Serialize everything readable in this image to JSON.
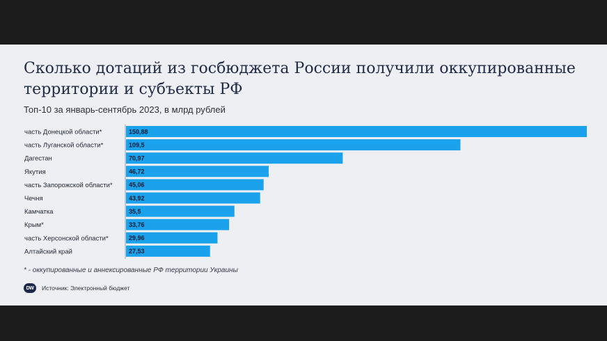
{
  "title": "Сколько дотаций из госбюджета России получили оккупированные территории и субъекты РФ",
  "subtitle": "Топ-10 за январь-сентябрь 2023, в млрд рублей",
  "footnote": "* - оккупированные и аннексированные РФ территории Украины",
  "source": "Источник: Электронный бюджет",
  "logo_text": "DW",
  "colors": {
    "bar": "#1aa3ec",
    "background": "#edeff2",
    "frame": "#1c1c1c"
  },
  "chart_data": {
    "type": "bar",
    "orientation": "horizontal",
    "categories": [
      "часть Донецкой области*",
      "часть Луганской области*",
      "Дагестан",
      "Якутия",
      "часть Запорожской области*",
      "Чечня",
      "Камчатка",
      "Крым*",
      "часть Херсонской области*",
      "Алтайский край"
    ],
    "values": [
      150.88,
      109.5,
      70.97,
      46.72,
      45.06,
      43.92,
      35.5,
      33.76,
      29.96,
      27.53
    ],
    "value_labels": [
      "150,88",
      "109,5",
      "70,97",
      "46,72",
      "45,06",
      "43,92",
      "35,5",
      "33,76",
      "29,96",
      "27,53"
    ],
    "xlim": [
      0,
      150.88
    ],
    "grid": false,
    "legend": "none"
  }
}
